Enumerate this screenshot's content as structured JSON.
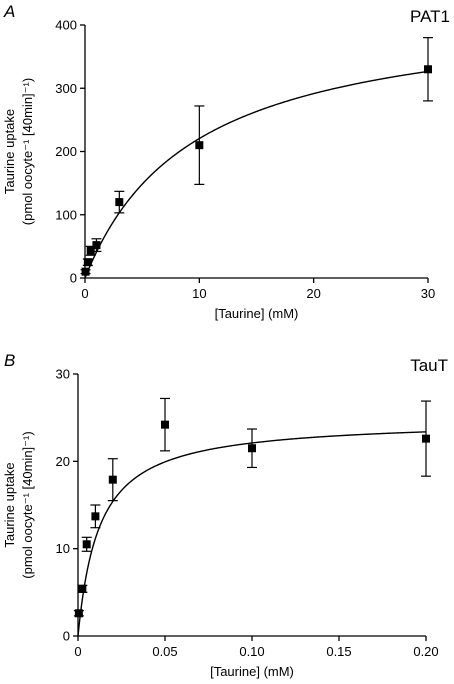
{
  "chart_data": [
    {
      "type": "scatter",
      "panel_letter": "A",
      "title": "PAT1",
      "xlabel": "[Taurine] (mM)",
      "ylabel_line1": "Taurine uptake",
      "ylabel_line2": "(pmol oocyte⁻¹ [40min]⁻¹)",
      "xlim": [
        0,
        30
      ],
      "ylim": [
        0,
        400
      ],
      "xticks": [
        0,
        10,
        20,
        30
      ],
      "xtick_labels": [
        "0",
        "10",
        "20",
        "30"
      ],
      "yticks": [
        0,
        100,
        200,
        300,
        400
      ],
      "ytick_labels": [
        "0",
        "100",
        "200",
        "300",
        "400"
      ],
      "grid": false,
      "series": [
        {
          "marker": "square",
          "x": [
            0.05,
            0.25,
            0.5,
            1,
            3,
            10,
            30
          ],
          "y": [
            10,
            25,
            43,
            52,
            120,
            210,
            330
          ],
          "err": [
            3,
            5,
            7,
            10,
            17,
            62,
            50
          ]
        }
      ],
      "fit": {
        "model": "michaelis-menten",
        "vmax": 430,
        "km": 9.5
      }
    },
    {
      "type": "scatter",
      "panel_letter": "B",
      "title": "TauT",
      "xlabel": "[Taurine] (mM)",
      "ylabel_line1": "Taurine uptake",
      "ylabel_line2": "(pmol oocyte⁻¹ [40min]⁻¹)",
      "xlim": [
        0,
        0.2
      ],
      "ylim": [
        0,
        30
      ],
      "xticks": [
        0,
        0.05,
        0.1,
        0.15,
        0.2
      ],
      "xtick_labels": [
        "0",
        "0.05",
        "0.10",
        "0.15",
        "0.20"
      ],
      "yticks": [
        0,
        10,
        20,
        30
      ],
      "ytick_labels": [
        "0",
        "10",
        "20",
        "30"
      ],
      "grid": false,
      "series": [
        {
          "marker": "square",
          "x": [
            0.0005,
            0.0025,
            0.005,
            0.01,
            0.02,
            0.05,
            0.1,
            0.2
          ],
          "y": [
            2.6,
            5.4,
            10.5,
            13.7,
            17.9,
            24.2,
            21.5,
            22.6
          ],
          "err": [
            0.3,
            0.4,
            0.8,
            1.3,
            2.4,
            3.0,
            2.2,
            4.3
          ]
        }
      ],
      "fit": {
        "model": "michaelis-menten",
        "vmax": 24.8,
        "km": 0.0122
      }
    }
  ]
}
